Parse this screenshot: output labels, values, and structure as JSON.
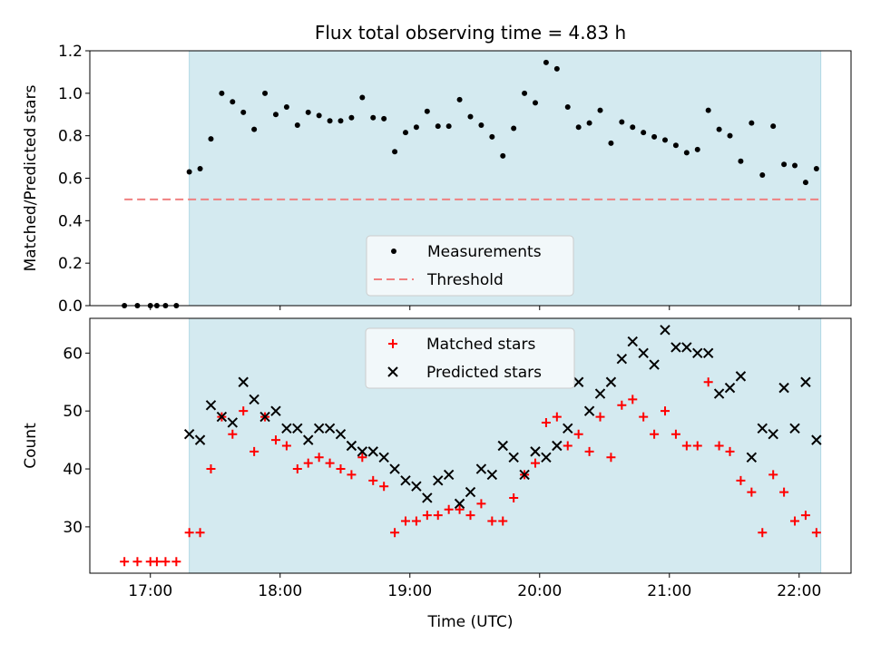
{
  "chart_data": [
    {
      "type": "scatter",
      "title": "Flux total observing time = 4.83 h",
      "xlabel": "",
      "ylabel": "Matched/Predicted stars",
      "xlim": [
        "16:32",
        "22:24"
      ],
      "ylim": [
        0,
        1.2
      ],
      "yticks": [
        "0.0",
        "0.2",
        "0.4",
        "0.6",
        "0.8",
        "1.0",
        "1.2"
      ],
      "shaded_interval": [
        "17:18",
        "22:10"
      ],
      "legend_position": "lower-center",
      "series": [
        {
          "name": "Measurements",
          "marker": "dot",
          "color": "#000000",
          "points": [
            [
              "16:48",
              0.0
            ],
            [
              "16:54",
              0.0
            ],
            [
              "17:00",
              0.0
            ],
            [
              "17:03",
              0.0
            ],
            [
              "17:07",
              0.0
            ],
            [
              "17:12",
              0.0
            ],
            [
              "17:18",
              0.63
            ],
            [
              "17:23",
              0.645
            ],
            [
              "17:28",
              0.785
            ],
            [
              "17:33",
              1.0
            ],
            [
              "17:38",
              0.96
            ],
            [
              "17:43",
              0.91
            ],
            [
              "17:48",
              0.83
            ],
            [
              "17:53",
              1.0
            ],
            [
              "17:58",
              0.9
            ],
            [
              "18:03",
              0.935
            ],
            [
              "18:08",
              0.85
            ],
            [
              "18:13",
              0.91
            ],
            [
              "18:18",
              0.895
            ],
            [
              "18:23",
              0.87
            ],
            [
              "18:28",
              0.87
            ],
            [
              "18:33",
              0.885
            ],
            [
              "18:38",
              0.98
            ],
            [
              "18:43",
              0.885
            ],
            [
              "18:48",
              0.88
            ],
            [
              "18:53",
              0.725
            ],
            [
              "18:58",
              0.815
            ],
            [
              "19:03",
              0.84
            ],
            [
              "19:08",
              0.915
            ],
            [
              "19:13",
              0.845
            ],
            [
              "19:18",
              0.845
            ],
            [
              "19:23",
              0.97
            ],
            [
              "19:28",
              0.89
            ],
            [
              "19:33",
              0.85
            ],
            [
              "19:38",
              0.795
            ],
            [
              "19:43",
              0.705
            ],
            [
              "19:48",
              0.835
            ],
            [
              "19:53",
              1.0
            ],
            [
              "19:58",
              0.955
            ],
            [
              "20:03",
              1.145
            ],
            [
              "20:08",
              1.115
            ],
            [
              "20:13",
              0.935
            ],
            [
              "20:18",
              0.84
            ],
            [
              "20:23",
              0.86
            ],
            [
              "20:28",
              0.92
            ],
            [
              "20:33",
              0.765
            ],
            [
              "20:38",
              0.865
            ],
            [
              "20:43",
              0.84
            ],
            [
              "20:48",
              0.815
            ],
            [
              "20:53",
              0.795
            ],
            [
              "20:58",
              0.78
            ],
            [
              "21:03",
              0.755
            ],
            [
              "21:08",
              0.72
            ],
            [
              "21:13",
              0.735
            ],
            [
              "21:18",
              0.92
            ],
            [
              "21:23",
              0.83
            ],
            [
              "21:28",
              0.8
            ],
            [
              "21:33",
              0.68
            ],
            [
              "21:38",
              0.86
            ],
            [
              "21:43",
              0.615
            ],
            [
              "21:48",
              0.845
            ],
            [
              "21:53",
              0.665
            ],
            [
              "21:58",
              0.66
            ],
            [
              "22:03",
              0.58
            ],
            [
              "22:08",
              0.645
            ]
          ]
        },
        {
          "name": "Threshold",
          "style": "dashed",
          "color": "#f08080",
          "points": [
            [
              "16:48",
              0.5
            ],
            [
              "22:10",
              0.5
            ]
          ]
        }
      ]
    },
    {
      "type": "scatter",
      "title": "",
      "xlabel": "Time (UTC)",
      "ylabel": "Count",
      "xlim": [
        "16:32",
        "22:24"
      ],
      "ylim": [
        22,
        66
      ],
      "yticks": [
        "30",
        "40",
        "50",
        "60"
      ],
      "xticks": [
        "17:00",
        "18:00",
        "19:00",
        "20:00",
        "21:00",
        "22:00"
      ],
      "shaded_interval": [
        "17:18",
        "22:10"
      ],
      "legend_position": "upper-center",
      "series": [
        {
          "name": "Matched stars",
          "marker": "plus",
          "color": "#ff0000",
          "points": [
            [
              "16:48",
              24
            ],
            [
              "16:54",
              24
            ],
            [
              "17:00",
              24
            ],
            [
              "17:03",
              24
            ],
            [
              "17:07",
              24
            ],
            [
              "17:12",
              24
            ],
            [
              "17:18",
              29
            ],
            [
              "17:23",
              29
            ],
            [
              "17:28",
              40
            ],
            [
              "17:33",
              49
            ],
            [
              "17:38",
              46
            ],
            [
              "17:43",
              50
            ],
            [
              "17:48",
              43
            ],
            [
              "17:53",
              49
            ],
            [
              "17:58",
              45
            ],
            [
              "18:03",
              44
            ],
            [
              "18:08",
              40
            ],
            [
              "18:13",
              41
            ],
            [
              "18:18",
              42
            ],
            [
              "18:23",
              41
            ],
            [
              "18:28",
              40
            ],
            [
              "18:33",
              39
            ],
            [
              "18:38",
              42
            ],
            [
              "18:43",
              38
            ],
            [
              "18:48",
              37
            ],
            [
              "18:53",
              29
            ],
            [
              "18:58",
              31
            ],
            [
              "19:03",
              31
            ],
            [
              "19:08",
              32
            ],
            [
              "19:13",
              32
            ],
            [
              "19:18",
              33
            ],
            [
              "19:23",
              33
            ],
            [
              "19:28",
              32
            ],
            [
              "19:33",
              34
            ],
            [
              "19:38",
              31
            ],
            [
              "19:43",
              31
            ],
            [
              "19:48",
              35
            ],
            [
              "19:53",
              39
            ],
            [
              "19:58",
              41
            ],
            [
              "20:03",
              48
            ],
            [
              "20:08",
              49
            ],
            [
              "20:13",
              44
            ],
            [
              "20:18",
              46
            ],
            [
              "20:23",
              43
            ],
            [
              "20:28",
              49
            ],
            [
              "20:33",
              42
            ],
            [
              "20:38",
              51
            ],
            [
              "20:43",
              52
            ],
            [
              "20:48",
              49
            ],
            [
              "20:53",
              46
            ],
            [
              "20:58",
              50
            ],
            [
              "21:03",
              46
            ],
            [
              "21:08",
              44
            ],
            [
              "21:13",
              44
            ],
            [
              "21:18",
              55
            ],
            [
              "21:23",
              44
            ],
            [
              "21:28",
              43
            ],
            [
              "21:33",
              38
            ],
            [
              "21:38",
              36
            ],
            [
              "21:43",
              29
            ],
            [
              "21:48",
              39
            ],
            [
              "21:53",
              36
            ],
            [
              "21:58",
              31
            ],
            [
              "22:03",
              32
            ],
            [
              "22:08",
              29
            ]
          ]
        },
        {
          "name": "Predicted stars",
          "marker": "x",
          "color": "#000000",
          "points": [
            [
              "17:18",
              46
            ],
            [
              "17:23",
              45
            ],
            [
              "17:28",
              51
            ],
            [
              "17:33",
              49
            ],
            [
              "17:38",
              48
            ],
            [
              "17:43",
              55
            ],
            [
              "17:48",
              52
            ],
            [
              "17:53",
              49
            ],
            [
              "17:58",
              50
            ],
            [
              "18:03",
              47
            ],
            [
              "18:08",
              47
            ],
            [
              "18:13",
              45
            ],
            [
              "18:18",
              47
            ],
            [
              "18:23",
              47
            ],
            [
              "18:28",
              46
            ],
            [
              "18:33",
              44
            ],
            [
              "18:38",
              43
            ],
            [
              "18:43",
              43
            ],
            [
              "18:48",
              42
            ],
            [
              "18:53",
              40
            ],
            [
              "18:58",
              38
            ],
            [
              "19:03",
              37
            ],
            [
              "19:08",
              35
            ],
            [
              "19:13",
              38
            ],
            [
              "19:18",
              39
            ],
            [
              "19:23",
              34
            ],
            [
              "19:28",
              36
            ],
            [
              "19:33",
              40
            ],
            [
              "19:38",
              39
            ],
            [
              "19:43",
              44
            ],
            [
              "19:48",
              42
            ],
            [
              "19:53",
              39
            ],
            [
              "19:58",
              43
            ],
            [
              "20:03",
              42
            ],
            [
              "20:08",
              44
            ],
            [
              "20:13",
              47
            ],
            [
              "20:18",
              55
            ],
            [
              "20:23",
              50
            ],
            [
              "20:28",
              53
            ],
            [
              "20:33",
              55
            ],
            [
              "20:38",
              59
            ],
            [
              "20:43",
              62
            ],
            [
              "20:48",
              60
            ],
            [
              "20:53",
              58
            ],
            [
              "20:58",
              64
            ],
            [
              "21:03",
              61
            ],
            [
              "21:08",
              61
            ],
            [
              "21:13",
              60
            ],
            [
              "21:18",
              60
            ],
            [
              "21:23",
              53
            ],
            [
              "21:28",
              54
            ],
            [
              "21:33",
              56
            ],
            [
              "21:38",
              42
            ],
            [
              "21:43",
              47
            ],
            [
              "21:48",
              46
            ],
            [
              "21:53",
              54
            ],
            [
              "21:58",
              47
            ],
            [
              "22:03",
              55
            ],
            [
              "22:08",
              45
            ]
          ]
        }
      ]
    }
  ],
  "colors": {
    "shade": "#d4eaf0",
    "shade_edge": "#b0d8e4",
    "legend_bg": "#f5f9fb"
  }
}
